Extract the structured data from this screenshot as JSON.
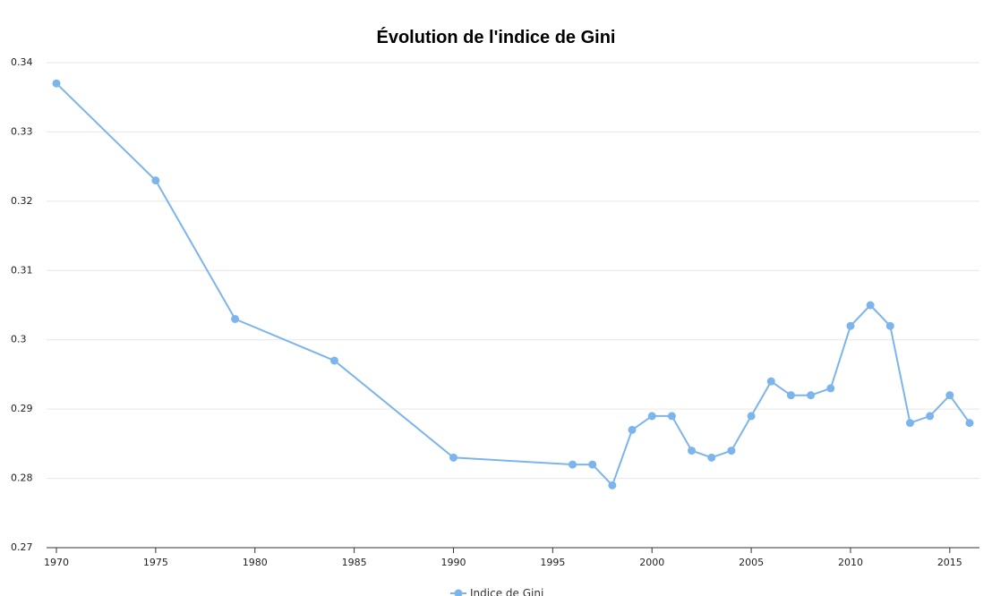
{
  "chart_data": {
    "type": "line",
    "title": "Évolution de l'indice de Gini",
    "xlabel": "",
    "ylabel": "",
    "xlim": [
      1970,
      2016
    ],
    "ylim": [
      0.27,
      0.34
    ],
    "x_ticks": [
      "1970",
      "1975",
      "1980",
      "1985",
      "1990",
      "1995",
      "2000",
      "2005",
      "2010",
      "2015"
    ],
    "y_ticks": [
      "0.27",
      "0.28",
      "0.29",
      "0.3",
      "0.31",
      "0.32",
      "0.33",
      "0.34"
    ],
    "grid": true,
    "legend": "bottom-center",
    "series": [
      {
        "name": "Indice de Gini",
        "color": "#7cb5ec",
        "x": [
          1970,
          1975,
          1979,
          1984,
          1990,
          1996,
          1997,
          1998,
          1999,
          2000,
          2001,
          2002,
          2003,
          2004,
          2005,
          2006,
          2007,
          2008,
          2009,
          2010,
          2011,
          2012,
          2013,
          2014,
          2015,
          2016
        ],
        "values": [
          0.337,
          0.323,
          0.303,
          0.297,
          0.283,
          0.282,
          0.282,
          0.279,
          0.287,
          0.289,
          0.289,
          0.284,
          0.283,
          0.284,
          0.289,
          0.294,
          0.292,
          0.292,
          0.293,
          0.302,
          0.305,
          0.302,
          0.288,
          0.289,
          0.292,
          0.288
        ]
      }
    ]
  }
}
